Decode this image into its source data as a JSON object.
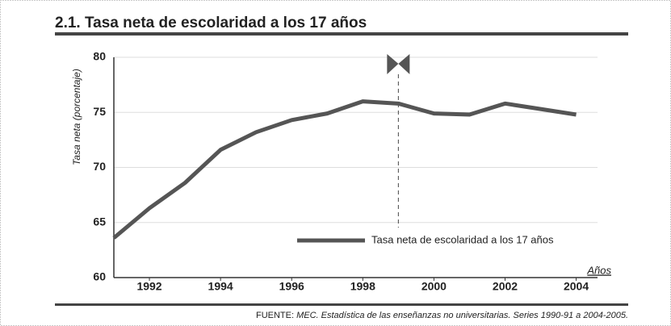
{
  "chart_data": {
    "type": "line",
    "title": "2.1. Tasa neta de escolaridad a los 17 años",
    "y_label": "Tasa neta (porcentaje)",
    "x_label": "Años",
    "x": [
      1991,
      1992,
      1993,
      1994,
      1995,
      1996,
      1997,
      1998,
      1999,
      2000,
      2001,
      2002,
      2003,
      2004
    ],
    "series": [
      {
        "name": "Tasa neta de escolaridad a los 17 años",
        "color": "#555555",
        "values": [
          63.6,
          66.3,
          68.6,
          71.6,
          73.2,
          74.3,
          74.9,
          76.0,
          75.8,
          74.9,
          74.8,
          75.8,
          75.3,
          74.8
        ]
      }
    ],
    "xlim": [
      1991,
      2004.6
    ],
    "xticks": [
      1992,
      1994,
      1996,
      1998,
      2000,
      2002,
      2004
    ],
    "ylim": [
      60,
      80
    ],
    "yticks": [
      60,
      65,
      70,
      75,
      80
    ],
    "grid": true,
    "annotation_x": 1999,
    "source_label": "FUENTE:",
    "source": "MEC. Estadística de las enseñanzas no universitarias. Series 1990-91 a 2004-2005."
  }
}
